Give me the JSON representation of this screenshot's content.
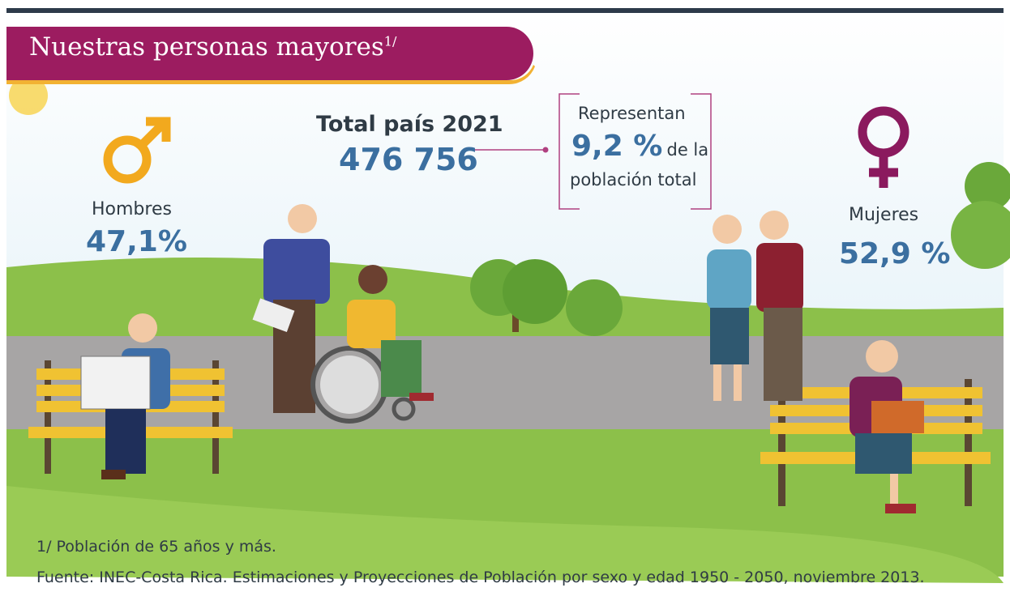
{
  "header": {
    "title": "Nuestras personas mayores",
    "footnote_mark": "1/"
  },
  "total": {
    "label": "Total país 2021",
    "value": "476 756"
  },
  "share": {
    "intro": "Representan",
    "value": "9,2 %",
    "suffix": "de la",
    "rest": "población total"
  },
  "men": {
    "label": "Hombres",
    "value": "47,1%"
  },
  "women": {
    "label": "Mujeres",
    "value": "52,9 %"
  },
  "footer": {
    "note": "1/ Población de 65 años y más.",
    "source": "Fuente: INEC-Costa Rica. Estimaciones y Proyecciones de Población por sexo y edad 1950 - 2050, noviembre 2013."
  }
}
